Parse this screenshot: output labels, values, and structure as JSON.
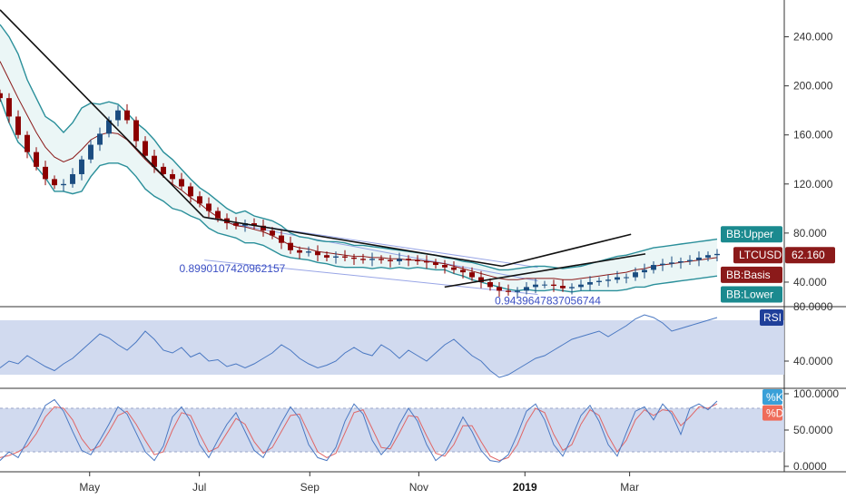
{
  "chart_data": {
    "type": "line",
    "symbol": "LTCUSD",
    "price_label": "62.160",
    "colors": {
      "bb_band": "#2a8f9a",
      "bb_basis": "#8b1a1a",
      "bb_fill": "#e6f4f4",
      "up_candle": "#1a4c80",
      "down_candle": "#8b0000",
      "trendline": "#111111",
      "fib_lines": "#7e8fe0",
      "annotation": "#3b4fc4",
      "rsi_line": "#4a78c2",
      "rsi_band": "#c9d4ec",
      "stoch_k": "#4a78c2",
      "stoch_d": "#e06666",
      "tag_teal": "#1b8a8f",
      "tag_red": "#8b1a1a",
      "tag_rsi": "#1f3f9a",
      "tag_k": "#3aa0d8",
      "tag_d": "#ef6c5a"
    },
    "x_ticks": [
      {
        "label": "May",
        "t": 0.125,
        "bold": false
      },
      {
        "label": "Jul",
        "t": 0.278,
        "bold": false
      },
      {
        "label": "Sep",
        "t": 0.432,
        "bold": false
      },
      {
        "label": "Nov",
        "t": 0.584,
        "bold": false
      },
      {
        "label": "2019",
        "t": 0.732,
        "bold": true
      },
      {
        "label": "Mar",
        "t": 0.878,
        "bold": false
      }
    ],
    "main_panel": {
      "ylim": [
        20,
        270
      ],
      "y_ticks": [
        "240.000",
        "200.000",
        "160.000",
        "120.000",
        "80.000",
        "40.000"
      ],
      "y_tick_values": [
        240,
        200,
        160,
        120,
        80,
        40
      ],
      "close": [
        190,
        175,
        160,
        146,
        134,
        124,
        119,
        120,
        128,
        140,
        152,
        161,
        172,
        180,
        172,
        155,
        143,
        134,
        128,
        124,
        118,
        110,
        104,
        98,
        92,
        88,
        86,
        88,
        86,
        82,
        78,
        72,
        66,
        64,
        65,
        62,
        60,
        61,
        60,
        59,
        58,
        59,
        58,
        57,
        59,
        58,
        57,
        56,
        54,
        52,
        50,
        48,
        44,
        40,
        36,
        33,
        32,
        33,
        36,
        38,
        38,
        37,
        35,
        36,
        38,
        40,
        41,
        42,
        44,
        44,
        48,
        50,
        54,
        55,
        56,
        57,
        58,
        60,
        62,
        63
      ],
      "bb_upper": [
        250,
        240,
        226,
        205,
        190,
        175,
        170,
        162,
        170,
        182,
        186,
        185,
        187,
        185,
        178,
        170,
        164,
        156,
        146,
        140,
        132,
        124,
        117,
        112,
        106,
        100,
        96,
        98,
        94,
        92,
        90,
        86,
        80,
        77,
        76,
        74,
        73,
        73,
        72,
        70,
        70,
        69,
        68,
        67,
        66,
        65,
        64,
        63,
        62,
        60,
        59,
        57,
        56,
        54,
        52,
        50,
        50,
        51,
        52,
        53,
        53,
        52,
        51,
        52,
        53,
        55,
        57,
        59,
        61,
        62,
        64,
        66,
        68,
        69,
        70,
        71,
        72,
        73,
        74,
        75
      ],
      "bb_basis": [
        220,
        205,
        190,
        176,
        162,
        150,
        142,
        138,
        141,
        148,
        156,
        160,
        162,
        161,
        156,
        148,
        140,
        133,
        126,
        120,
        115,
        109,
        104,
        98,
        93,
        89,
        86,
        85,
        83,
        81,
        78,
        74,
        70,
        68,
        67,
        65,
        64,
        63,
        62,
        61,
        61,
        60,
        60,
        59,
        59,
        58,
        58,
        57,
        56,
        55,
        53,
        51,
        49,
        47,
        45,
        43,
        42,
        42,
        43,
        43,
        43,
        43,
        42,
        42,
        43,
        44,
        45,
        46,
        47,
        48,
        50,
        51,
        53,
        54,
        55,
        56,
        57,
        58,
        59,
        60
      ],
      "bb_lower": [
        190,
        170,
        154,
        147,
        134,
        125,
        114,
        114,
        112,
        114,
        126,
        135,
        137,
        137,
        134,
        126,
        116,
        110,
        106,
        100,
        98,
        94,
        91,
        84,
        80,
        78,
        76,
        72,
        72,
        70,
        66,
        62,
        60,
        59,
        58,
        56,
        55,
        53,
        52,
        52,
        52,
        51,
        52,
        51,
        52,
        51,
        52,
        51,
        50,
        50,
        47,
        45,
        42,
        40,
        38,
        36,
        34,
        33,
        34,
        33,
        33,
        34,
        33,
        32,
        33,
        33,
        33,
        33,
        33,
        34,
        36,
        36,
        38,
        39,
        40,
        41,
        42,
        43,
        44,
        45
      ],
      "trendlines": [
        {
          "from": {
            "t": 0.0,
            "v": 262
          },
          "to": {
            "t": 0.284,
            "v": 93
          }
        },
        {
          "from": {
            "t": 0.284,
            "v": 93
          },
          "to": {
            "t": 0.7,
            "v": 53
          }
        },
        {
          "from": {
            "t": 0.7,
            "v": 53
          },
          "to": {
            "t": 0.88,
            "v": 79
          }
        },
        {
          "from": {
            "t": 0.62,
            "v": 36
          },
          "to": {
            "t": 0.9,
            "v": 63
          }
        }
      ],
      "fib_lines": [
        {
          "from": {
            "t": 0.29,
            "v": 92
          },
          "to": {
            "t": 0.75,
            "v": 52
          }
        },
        {
          "from": {
            "t": 0.285,
            "v": 58
          },
          "to": {
            "t": 0.75,
            "v": 30
          }
        },
        {
          "from": {
            "t": 0.32,
            "v": 88
          },
          "to": {
            "t": 0.75,
            "v": 41
          }
        }
      ],
      "annotations": [
        {
          "text": "0.8990107420962157",
          "t": 0.25,
          "v": 48
        },
        {
          "text": "0.9439647837056744",
          "t": 0.69,
          "v": 22
        }
      ],
      "tags": [
        {
          "label": "BB:Upper",
          "v": 79,
          "kind": "teal"
        },
        {
          "label": "LTCUSD",
          "v": 62,
          "kind": "red"
        },
        {
          "label": "BB:Basis",
          "v": 46,
          "kind": "red"
        },
        {
          "label": "BB:Lower",
          "v": 30,
          "kind": "teal"
        }
      ]
    },
    "rsi_panel": {
      "label": "RSI",
      "ylim": [
        20,
        80
      ],
      "y_ticks": [
        "80.0000",
        "40.0000"
      ],
      "y_tick_values": [
        80,
        40
      ],
      "band": [
        30,
        70
      ],
      "values": [
        35,
        40,
        38,
        44,
        40,
        36,
        33,
        38,
        42,
        48,
        54,
        60,
        57,
        52,
        48,
        54,
        62,
        56,
        48,
        46,
        50,
        43,
        46,
        40,
        41,
        36,
        38,
        35,
        38,
        42,
        46,
        52,
        48,
        42,
        38,
        35,
        37,
        40,
        46,
        50,
        46,
        44,
        52,
        48,
        42,
        48,
        44,
        40,
        46,
        52,
        56,
        50,
        44,
        40,
        33,
        28,
        30,
        34,
        38,
        42,
        44,
        48,
        52,
        56,
        58,
        60,
        62,
        58,
        62,
        66,
        71,
        74,
        72,
        68,
        62,
        64,
        66,
        68,
        70,
        72
      ]
    },
    "stoch_panel": {
      "k_label": "%K",
      "d_label": "%D",
      "ylim": [
        0,
        100
      ],
      "y_ticks": [
        "100.0000",
        "50.0000",
        "0.0000"
      ],
      "y_tick_values": [
        100,
        50,
        0
      ],
      "band": [
        20,
        80
      ],
      "k": [
        8,
        20,
        12,
        35,
        58,
        84,
        92,
        76,
        48,
        22,
        16,
        36,
        58,
        82,
        72,
        46,
        20,
        8,
        28,
        68,
        82,
        62,
        30,
        12,
        36,
        58,
        74,
        48,
        22,
        12,
        36,
        60,
        82,
        66,
        30,
        12,
        8,
        26,
        62,
        86,
        72,
        36,
        16,
        30,
        58,
        80,
        62,
        30,
        8,
        18,
        42,
        68,
        48,
        22,
        8,
        6,
        16,
        44,
        76,
        86,
        64,
        30,
        14,
        40,
        70,
        84,
        62,
        30,
        14,
        46,
        76,
        82,
        64,
        86,
        72,
        44,
        80,
        86,
        78,
        90
      ],
      "d": [
        12,
        15,
        20,
        28,
        45,
        68,
        82,
        80,
        64,
        38,
        22,
        28,
        48,
        70,
        76,
        58,
        36,
        16,
        20,
        50,
        74,
        70,
        44,
        20,
        26,
        46,
        66,
        58,
        34,
        18,
        26,
        48,
        70,
        72,
        46,
        20,
        12,
        18,
        46,
        74,
        78,
        52,
        26,
        24,
        46,
        70,
        68,
        42,
        18,
        14,
        30,
        56,
        56,
        34,
        14,
        8,
        12,
        30,
        60,
        80,
        74,
        44,
        22,
        30,
        58,
        78,
        70,
        42,
        20,
        36,
        64,
        78,
        70,
        78,
        76,
        56,
        68,
        82,
        80,
        86
      ]
    }
  }
}
